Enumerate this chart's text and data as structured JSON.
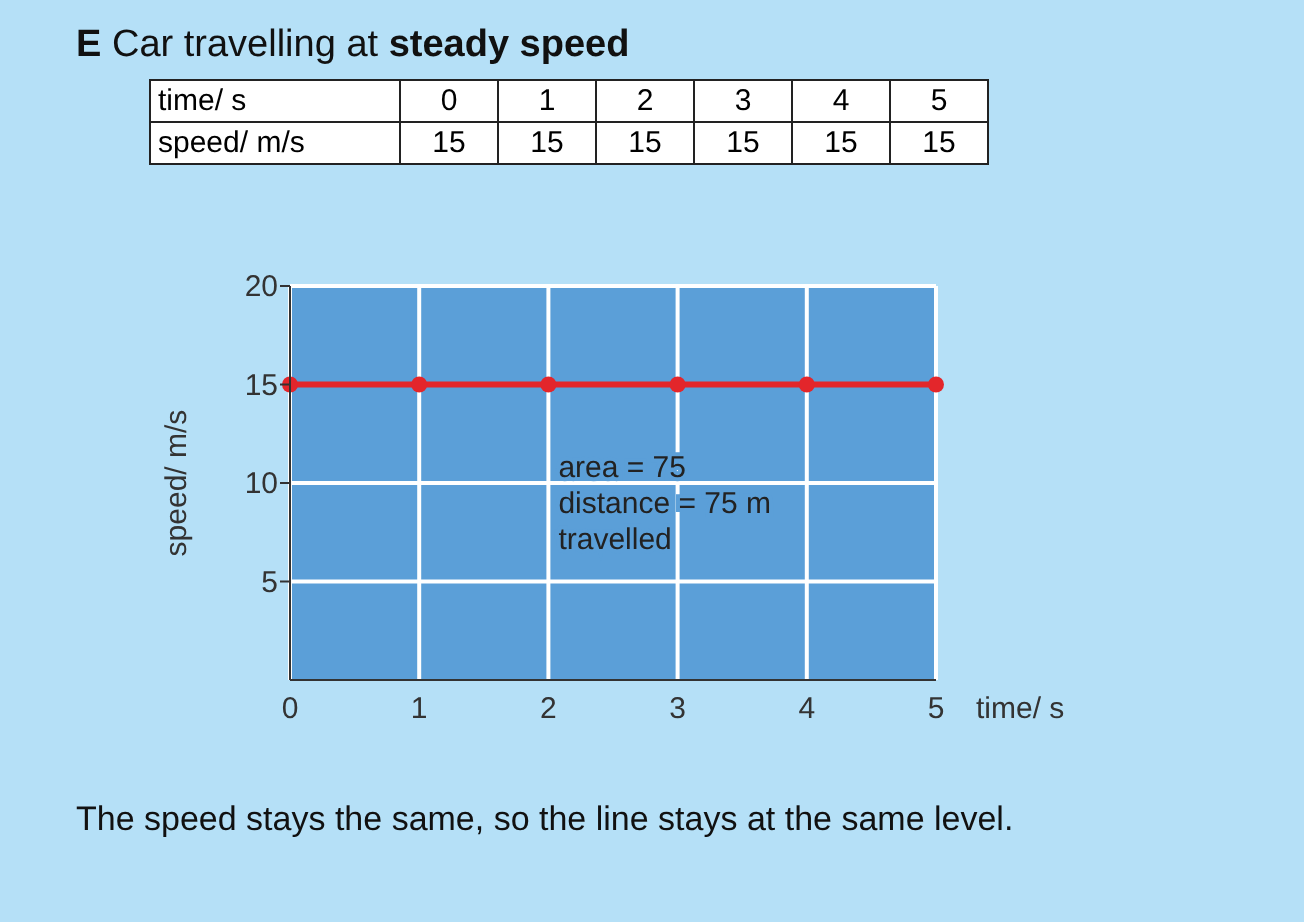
{
  "chart_data": [
    {
      "type": "heatmap",
      "title": "E  Car travelling at steady speed",
      "xlabel": "time/ s",
      "categories": [
        "0",
        "1",
        "2",
        "3",
        "4",
        "5"
      ],
      "y_categories": [
        "speed/ m/s"
      ],
      "cells": [
        [
          15,
          15,
          15,
          15,
          15,
          15
        ]
      ],
      "data_labels": true
    },
    {
      "type": "line",
      "xlabel": "time/ s",
      "ylabel": "speed/ m/s",
      "x": [
        0,
        1,
        2,
        3,
        4,
        5
      ],
      "series": [
        {
          "color": "#e3262b",
          "values": [
            15,
            15,
            15,
            15,
            15,
            15
          ]
        }
      ],
      "xlim": [
        0,
        5
      ],
      "ylim": [
        0,
        20
      ],
      "xticks": [
        0,
        1,
        2,
        3,
        4,
        5
      ],
      "yticks": [
        5,
        10,
        15,
        20
      ],
      "grid": true,
      "marker": "circle",
      "annotations": [
        "area = 75",
        "distance = 75 m travelled",
        "The speed stays the same, so the line stays at the same level."
      ]
    }
  ]
}
